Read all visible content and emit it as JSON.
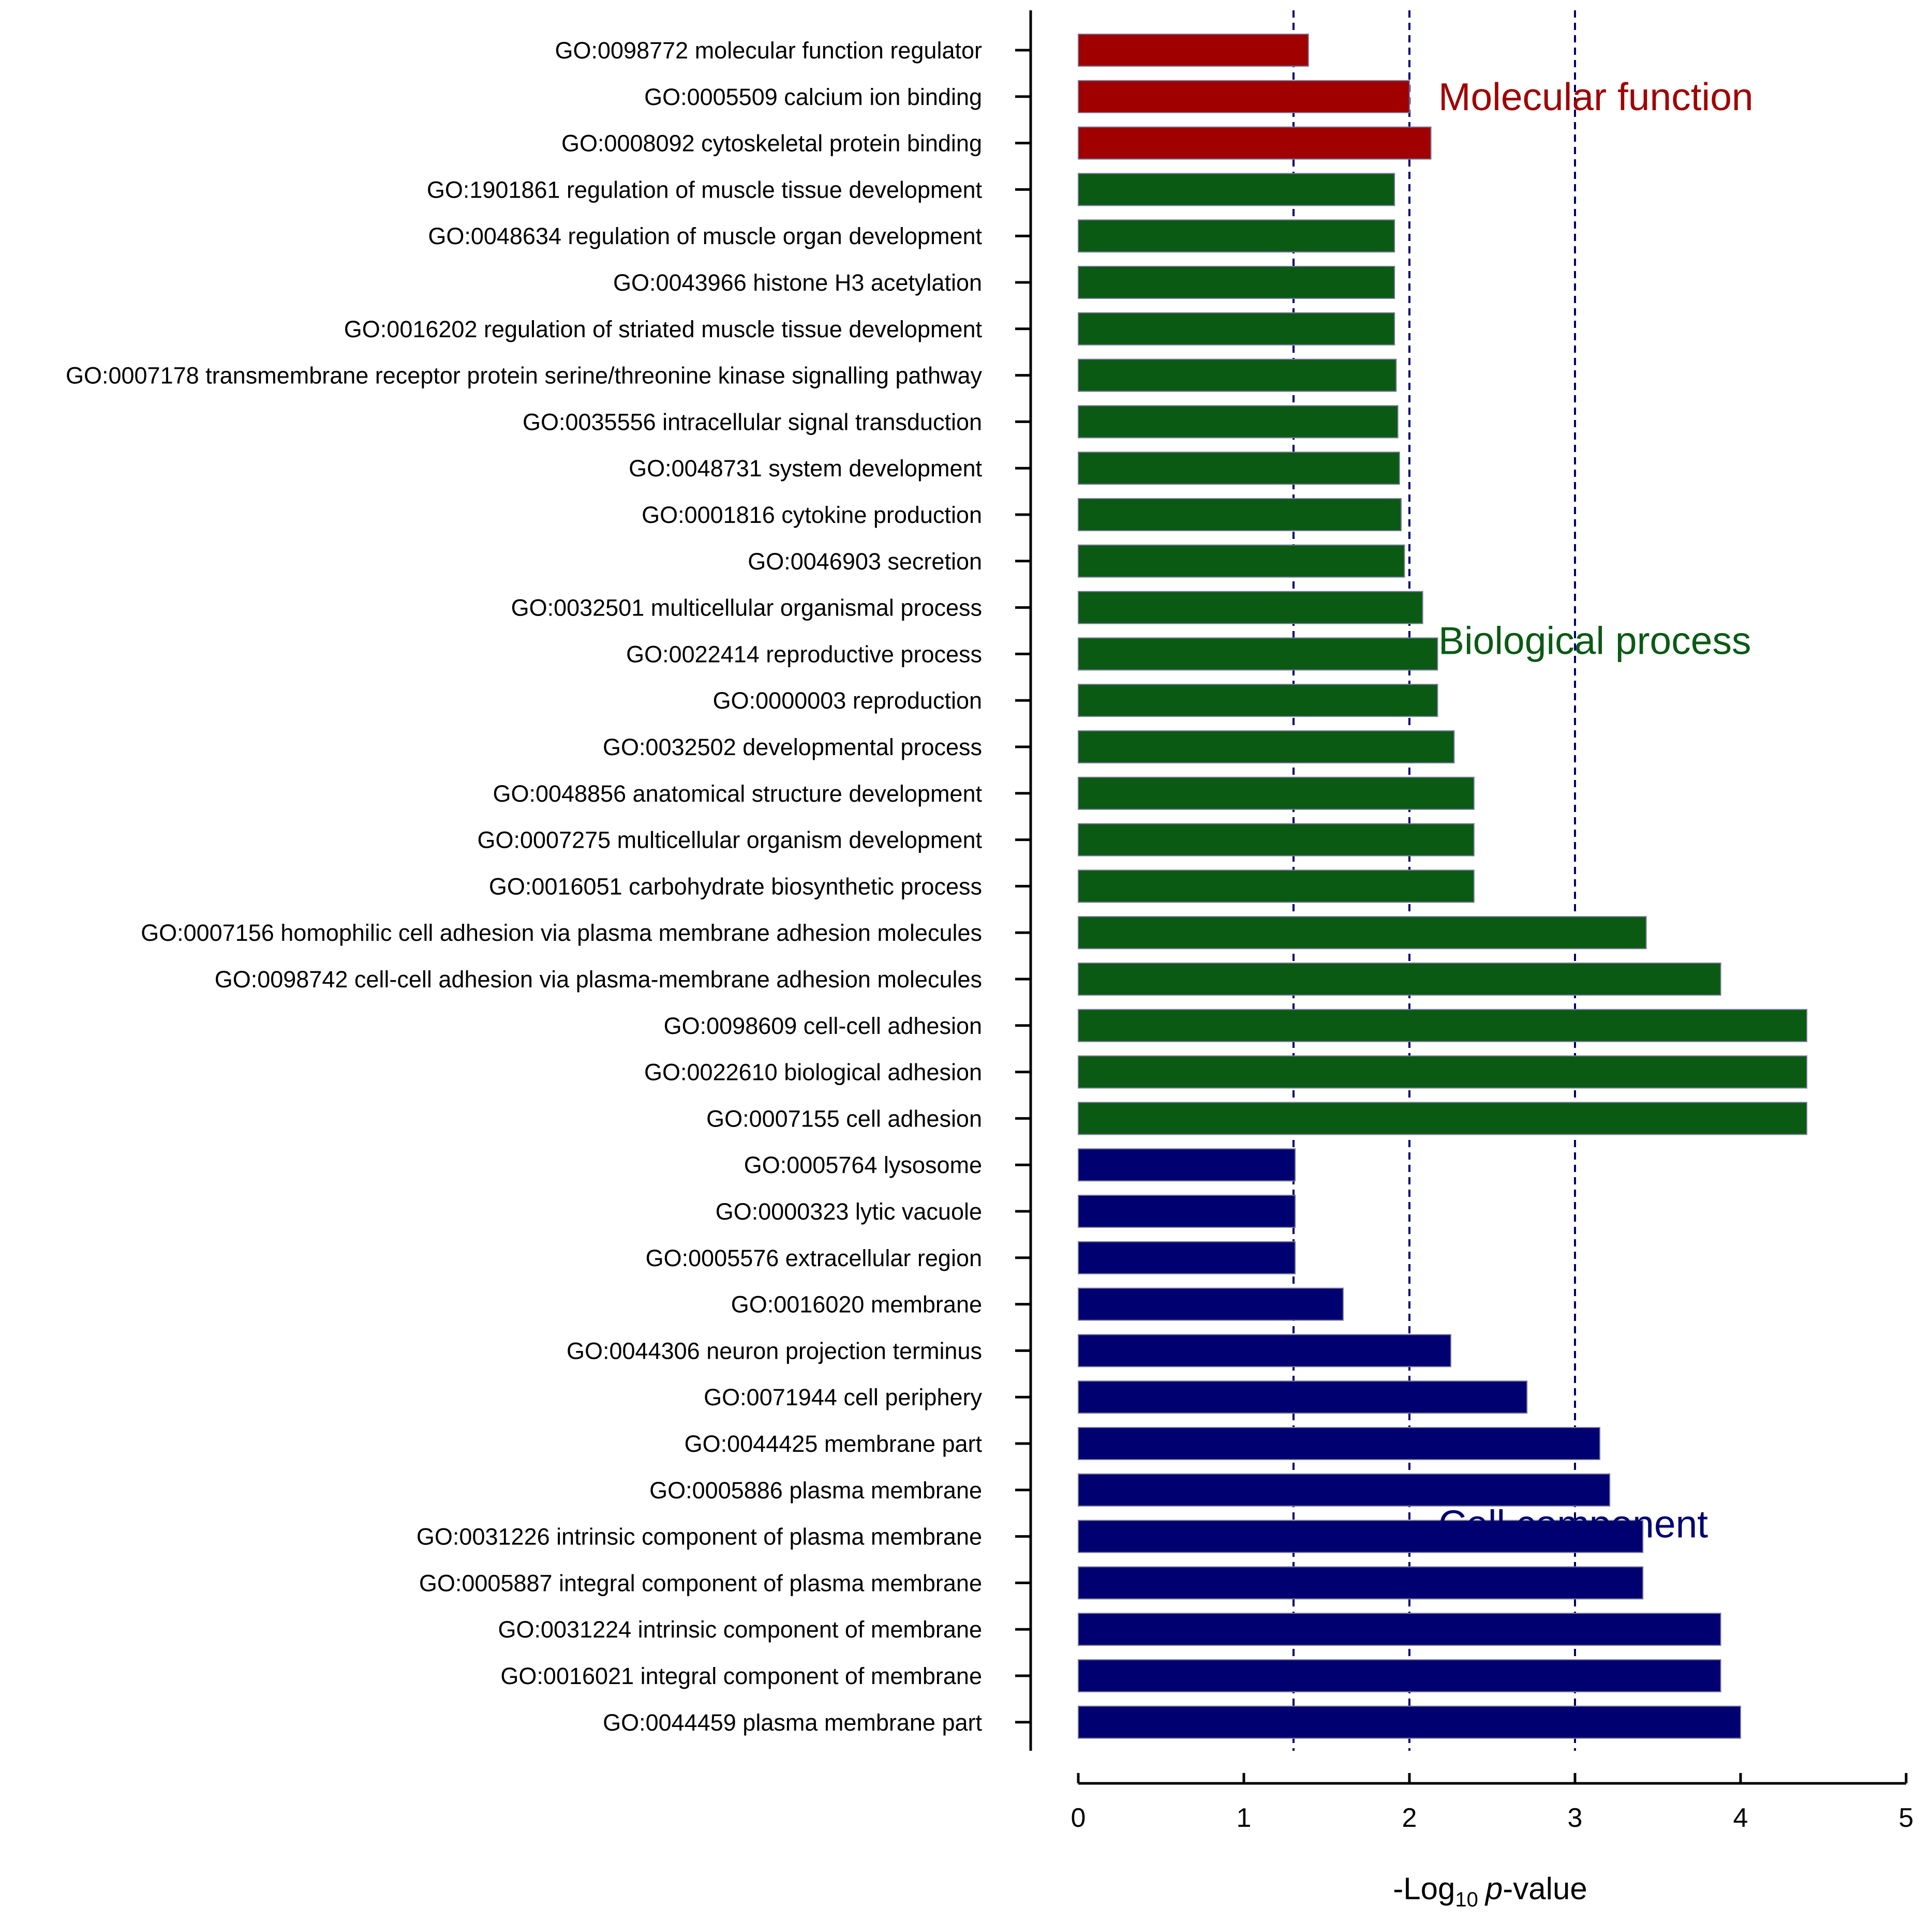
{
  "chart_data": {
    "type": "bar",
    "orientation": "horizontal",
    "xlabel": {
      "prefix": "-Log",
      "subscript": "10",
      "italic": "p",
      "suffix": "-value"
    },
    "xlim": [
      0,
      5
    ],
    "xticks": [
      0,
      1,
      2,
      3,
      4,
      5
    ],
    "reference_lines": [
      1.3,
      2,
      3
    ],
    "groups": [
      {
        "name": "Molecular function",
        "color": "#a00000",
        "categories": [
          "GO:0098772 molecular function regulator",
          "GO:0005509 calcium ion binding",
          "GO:0008092 cytoskeletal protein binding"
        ],
        "values": [
          1.39,
          2.0,
          2.13
        ]
      },
      {
        "name": "Biological process",
        "color": "#0a5a14",
        "categories": [
          "GO:1901861 regulation of muscle tissue development",
          "GO:0048634 regulation of muscle organ development",
          "GO:0043966 histone H3 acetylation",
          "GO:0016202 regulation of striated muscle tissue development",
          "GO:0007178 transmembrane receptor protein serine/threonine kinase signalling pathway",
          "GO:0035556 intracellular signal transduction",
          "GO:0048731 system development",
          "GO:0001816 cytokine production",
          "GO:0046903 secretion",
          "GO:0032501 multicellular organismal process",
          "GO:0022414 reproductive process",
          "GO:0000003 reproduction",
          "GO:0032502 developmental process",
          "GO:0048856 anatomical structure development",
          "GO:0007275 multicellular organism development",
          "GO:0016051 carbohydrate biosynthetic process",
          "GO:0007156 homophilic cell adhesion via plasma membrane adhesion molecules",
          "GO:0098742 cell-cell adhesion via plasma-membrane adhesion molecules",
          "GO:0098609 cell-cell adhesion",
          "GO:0022610 biological adhesion",
          "GO:0007155 cell adhesion"
        ],
        "values": [
          1.91,
          1.91,
          1.91,
          1.91,
          1.92,
          1.93,
          1.94,
          1.95,
          1.97,
          2.08,
          2.17,
          2.17,
          2.27,
          2.39,
          2.39,
          2.39,
          3.43,
          3.88,
          4.4,
          4.4,
          4.4
        ]
      },
      {
        "name": "Cell component",
        "color": "#000070",
        "categories": [
          "GO:0005764 lysosome",
          "GO:0000323 lytic vacuole",
          "GO:0005576 extracellular region",
          "GO:0016020 membrane",
          "GO:0044306 neuron projection terminus",
          "GO:0071944 cell periphery",
          "GO:0044425 membrane part",
          "GO:0005886 plasma membrane",
          "GO:0031226 intrinsic component of plasma membrane",
          "GO:0005887 integral component of plasma membrane",
          "GO:0031224 intrinsic component of membrane",
          "GO:0016021 integral component of membrane",
          "GO:0044459 plasma membrane part"
        ],
        "values": [
          1.31,
          1.31,
          1.31,
          1.6,
          2.25,
          2.71,
          3.15,
          3.21,
          3.41,
          3.41,
          3.88,
          3.88,
          4.0
        ]
      }
    ]
  }
}
